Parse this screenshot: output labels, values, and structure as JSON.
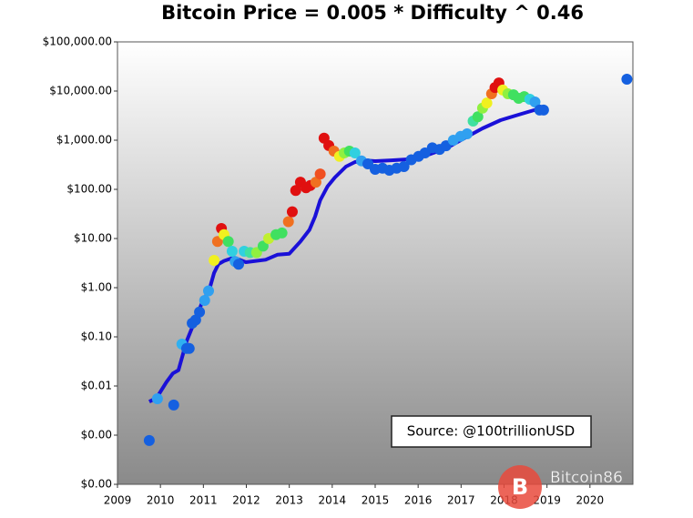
{
  "chart_data": {
    "type": "scatter",
    "title": "Bitcoin Price = 0.005 * Difficulty ^ 0.46",
    "annotation": "Source: @100trillionUSD",
    "watermark": "Bitcoin86",
    "log_y": true,
    "xlim": [
      2009,
      2021
    ],
    "xticks": [
      2009,
      2010,
      2011,
      2012,
      2013,
      2014,
      2015,
      2016,
      2017,
      2018,
      2019,
      2020
    ],
    "ylim": [
      0.0001,
      100000
    ],
    "yticks": [
      {
        "value": 100000,
        "label": "$100,000.00"
      },
      {
        "value": 10000,
        "label": "$10,000.00"
      },
      {
        "value": 1000,
        "label": "$1,000.00"
      },
      {
        "value": 100,
        "label": "$100.00"
      },
      {
        "value": 10,
        "label": "$10.00"
      },
      {
        "value": 1,
        "label": "$1.00"
      },
      {
        "value": 0.1,
        "label": "$0.10"
      },
      {
        "value": 0.01,
        "label": "$0.01"
      },
      {
        "value": 0.001,
        "label": "$0.00"
      },
      {
        "value": 0.0001,
        "label": "$0.00"
      }
    ],
    "line": {
      "color": "#1a10d8",
      "x": [
        2009.74,
        2009.91,
        2010.14,
        2010.29,
        2010.42,
        2010.61,
        2010.78,
        2010.97,
        2011.14,
        2011.25,
        2011.35,
        2011.48,
        2011.71,
        2011.99,
        2012.45,
        2012.73,
        2013.0,
        2013.26,
        2013.47,
        2013.6,
        2013.72,
        2013.89,
        2014.06,
        2014.32,
        2014.53,
        2014.74,
        2015.0,
        2015.38,
        2015.8,
        2016.22,
        2016.65,
        2017.07,
        2017.5,
        2017.92,
        2018.34,
        2018.77,
        2018.92
      ],
      "values": [
        0.0048,
        0.0057,
        0.012,
        0.018,
        0.021,
        0.081,
        0.19,
        0.5,
        0.91,
        2.0,
        3.0,
        3.5,
        4.1,
        3.3,
        3.7,
        4.7,
        4.9,
        8.7,
        15,
        28,
        60,
        114,
        174,
        290,
        360,
        390,
        375,
        390,
        410,
        500,
        680,
        1090,
        1740,
        2560,
        3300,
        4270,
        4460
      ]
    },
    "points": {
      "x": [
        2009.74,
        2009.93,
        2010.31,
        2010.5,
        2010.61,
        2010.67,
        2010.74,
        2010.82,
        2010.91,
        2011.03,
        2011.12,
        2011.25,
        2011.33,
        2011.42,
        2011.48,
        2011.58,
        2011.67,
        2011.74,
        2011.82,
        2011.95,
        2012.09,
        2012.24,
        2012.39,
        2012.52,
        2012.69,
        2012.83,
        2012.98,
        2013.07,
        2013.15,
        2013.26,
        2013.39,
        2013.49,
        2013.62,
        2013.72,
        2013.81,
        2013.92,
        2014.04,
        2014.17,
        2014.28,
        2014.4,
        2014.53,
        2014.68,
        2014.83,
        2015.0,
        2015.17,
        2015.33,
        2015.5,
        2015.67,
        2015.84,
        2016.01,
        2016.16,
        2016.33,
        2016.5,
        2016.65,
        2016.82,
        2016.99,
        2017.14,
        2017.28,
        2017.39,
        2017.5,
        2017.6,
        2017.71,
        2017.79,
        2017.88,
        2017.97,
        2018.09,
        2018.22,
        2018.34,
        2018.47,
        2018.6,
        2018.72,
        2018.83,
        2018.92,
        2020.86
      ],
      "values": [
        0.00078,
        0.0055,
        0.0041,
        0.071,
        0.058,
        0.058,
        0.19,
        0.22,
        0.32,
        0.55,
        0.86,
        3.6,
        8.7,
        16,
        12,
        8.7,
        5.5,
        3.4,
        3.0,
        5.5,
        5.2,
        5.2,
        7.0,
        10,
        12,
        13,
        22,
        35,
        95,
        140,
        108,
        120,
        140,
        205,
        1100,
        780,
        600,
        470,
        550,
        600,
        550,
        380,
        330,
        255,
        270,
        245,
        270,
        290,
        400,
        470,
        550,
        700,
        650,
        770,
        1000,
        1200,
        1350,
        2450,
        3000,
        4500,
        5700,
        8800,
        11800,
        14600,
        10500,
        8800,
        8400,
        7100,
        7700,
        6800,
        6000,
        4100,
        4100,
        17400
      ],
      "colors": [
        "#1560e0",
        "#30a0f0",
        "#1560e0",
        "#30b0f0",
        "#1560e0",
        "#1560e0",
        "#1560e0",
        "#1560e0",
        "#1560e0",
        "#30a0f0",
        "#30a0f0",
        "#f0f020",
        "#f07020",
        "#e01010",
        "#f0f020",
        "#40e060",
        "#30d0e0",
        "#30a0f0",
        "#1560e0",
        "#30d0e0",
        "#40e0a0",
        "#90f040",
        "#40e060",
        "#c0f030",
        "#40e060",
        "#40e060",
        "#f07020",
        "#e01010",
        "#e01010",
        "#e01010",
        "#e01010",
        "#e01010",
        "#f07020",
        "#f05020",
        "#e01010",
        "#e01010",
        "#f07020",
        "#f0f020",
        "#90f040",
        "#40e060",
        "#30d0e0",
        "#30a0f0",
        "#1560e0",
        "#1560e0",
        "#1560e0",
        "#1560e0",
        "#1560e0",
        "#1560e0",
        "#1560e0",
        "#1560e0",
        "#1560e0",
        "#1560e0",
        "#1560e0",
        "#1560e0",
        "#30a0f0",
        "#30a0f0",
        "#30a0f0",
        "#40e0a0",
        "#40e060",
        "#90f040",
        "#f0f020",
        "#f07020",
        "#e01010",
        "#e01010",
        "#f0f020",
        "#90f040",
        "#40e060",
        "#40e060",
        "#40e060",
        "#30d0e0",
        "#30a0f0",
        "#1560e0",
        "#1560e0",
        "#1560e0"
      ]
    }
  }
}
